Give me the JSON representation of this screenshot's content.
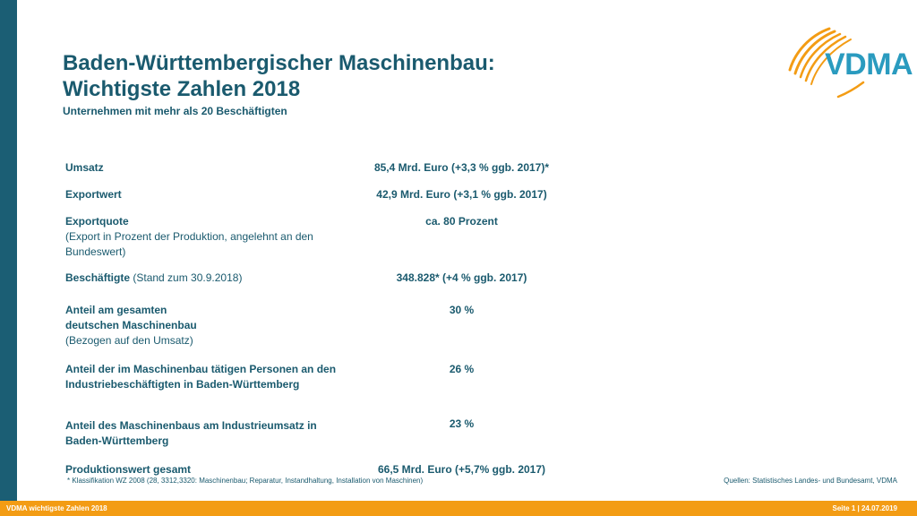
{
  "header": {
    "title_line1": "Baden-Württembergischer Maschinenbau:",
    "title_line2": "Wichtigste Zahlen 2018",
    "subtitle": "Unternehmen mit mehr als 20 Beschäftigten"
  },
  "logo": {
    "text": "VDMA",
    "arc_color": "#f39c14",
    "text_color": "#2a9bbf"
  },
  "colors": {
    "accent": "#1b5e74",
    "footer": "#f39c14",
    "text": "#1a5a6e"
  },
  "rows": [
    {
      "label_bold": "Umsatz",
      "label_normal": "",
      "label_extra": "",
      "value": "85,4 Mrd. Euro (+3,3 % ggb. 2017)*"
    },
    {
      "label_bold": "Exportwert",
      "label_normal": "",
      "label_extra": "",
      "value": "42,9 Mrd. Euro (+3,1 % ggb. 2017)"
    },
    {
      "label_bold": "Exportquote",
      "label_normal": "",
      "label_extra": "(Export in Prozent der Produktion, angelehnt an den Bundeswert)",
      "value": "ca. 80 Prozent"
    },
    {
      "label_bold": "Beschäftigte",
      "label_normal": " (Stand zum 30.9.2018)",
      "label_extra": "",
      "value": "348.828* (+4 % ggb. 2017)"
    },
    {
      "label_bold": "Anteil am gesamten deutschen Maschinenbau",
      "label_normal": "",
      "label_extra": "(Bezogen auf den Umsatz)",
      "value": "30 %"
    },
    {
      "label_bold": "Anteil der im Maschinenbau tätigen Personen an den Industriebeschäftigten in Baden-Württemberg",
      "label_normal": "",
      "label_extra": "",
      "value": "26 %"
    },
    {
      "label_bold": "Anteil des Maschinenbaus am Industrieumsatz in Baden-Württemberg",
      "label_normal": "",
      "label_extra": "",
      "value": "23 %"
    },
    {
      "label_bold": "Produktionswert gesamt",
      "label_normal": "",
      "label_extra": "",
      "value": "66,5 Mrd. Euro (+5,7% ggb. 2017)"
    }
  ],
  "footnote": "* Klassifikation WZ 2008 (28, 3312,3320: Maschinenbau; Reparatur, Instandhaltung, Installation von Maschinen)",
  "sources": "Quellen: Statistisches Landes- und Bundesamt, VDMA",
  "footer": {
    "left": "VDMA wichtigste Zahlen 2018",
    "right": "Seite 1 | 24.07.2019"
  }
}
